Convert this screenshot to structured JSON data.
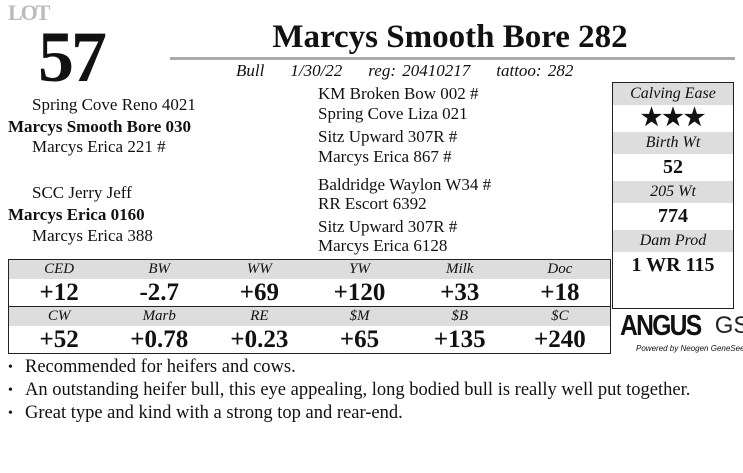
{
  "lot": {
    "word": "LOT",
    "number": "57"
  },
  "animal": {
    "name": "Marcys Smooth Bore 282",
    "sex": "Bull",
    "birth_date": "1/30/22",
    "reg": "reg: 20410217",
    "tattoo": "tattoo: 282"
  },
  "pedigree": {
    "sire": "Marcys Smooth Bore 030",
    "sire_sire": "Spring Cove Reno 4021",
    "sire_dam": "Marcys Erica 221  #",
    "sss": "KM Broken Bow 002 #",
    "ssd": "Spring Cove Liza 021",
    "sds": "Sitz Upward 307R #",
    "sdd": "Marcys Erica 867 #",
    "dam": "Marcys Erica 0160",
    "dam_sire": "SCC Jerry Jeff",
    "dam_dam": "Marcys Erica 388",
    "dss": "Baldridge Waylon W34 #",
    "dsd": "RR Escort 6392",
    "dds": "Sitz Upward 307R #",
    "ddd": "Marcys Erica 6128"
  },
  "stats": {
    "calving_ease_label": "Calving Ease",
    "calving_ease_stars": 3,
    "calving_ease_display": "★★★",
    "birth_wt_label": "Birth Wt",
    "birth_wt": "52",
    "wt205_label": "205 Wt",
    "wt205": "774",
    "dam_prod_label": "Dam Prod",
    "dam_prod": "1 WR 115"
  },
  "epd": {
    "row1": {
      "labels": [
        "CED",
        "BW",
        "WW",
        "YW",
        "Milk",
        "Doc"
      ],
      "values": [
        "+12",
        "-2.7",
        "+69",
        "+120",
        "+33",
        "+18"
      ]
    },
    "row2": {
      "labels": [
        "CW",
        "Marb",
        "RE",
        "$M",
        "$B",
        "$C"
      ],
      "values": [
        "+52",
        "+0.78",
        "+0.23",
        "+65",
        "+135",
        "+240"
      ]
    }
  },
  "logo": {
    "brand": "ANGUS",
    "suffix": "GS",
    "tagline": "Powered by Neogen GeneSeek"
  },
  "notes": [
    "Recommended for heifers and cows.",
    "An outstanding heifer bull, this eye appealing, long bodied bull is really well put together.",
    "Great type and kind with a strong top and rear-end."
  ]
}
